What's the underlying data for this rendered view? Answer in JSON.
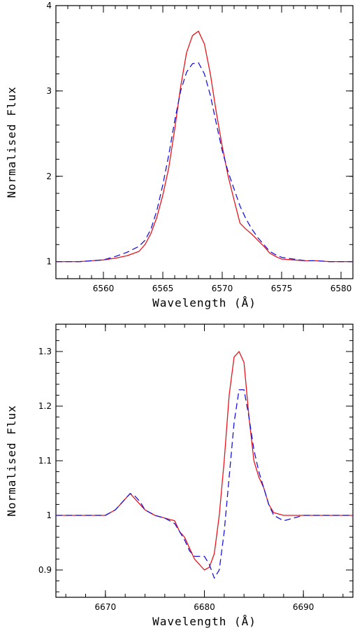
{
  "chart_data": [
    {
      "type": "line",
      "xlabel": "Wavelength (Å)",
      "ylabel": "Normalised Flux",
      "xlim": [
        6556,
        6581
      ],
      "ylim": [
        0.8,
        4.0
      ],
      "xticks": [
        6560,
        6565,
        6570,
        6575,
        6580
      ],
      "yticks": [
        1,
        2,
        3,
        4
      ],
      "grid": false,
      "series": [
        {
          "color": "#e8141c",
          "style": "solid",
          "x": [
            6556,
            6557,
            6558,
            6559,
            6560,
            6561,
            6562,
            6563,
            6563.5,
            6564,
            6564.5,
            6565,
            6565.5,
            6566,
            6566.5,
            6567,
            6567.5,
            6568,
            6568.5,
            6569,
            6569.5,
            6570,
            6570.5,
            6571,
            6571.5,
            6572,
            6572.5,
            6573,
            6573.5,
            6574,
            6574.5,
            6575,
            6576,
            6577,
            6578,
            6579,
            6580,
            6581
          ],
          "y": [
            1.0,
            1.0,
            1.0,
            1.01,
            1.02,
            1.04,
            1.07,
            1.12,
            1.2,
            1.33,
            1.52,
            1.78,
            2.1,
            2.55,
            3.05,
            3.45,
            3.65,
            3.7,
            3.55,
            3.2,
            2.75,
            2.35,
            2.0,
            1.72,
            1.45,
            1.38,
            1.32,
            1.25,
            1.18,
            1.1,
            1.06,
            1.03,
            1.02,
            1.01,
            1.01,
            1.0,
            1.0,
            1.0
          ]
        },
        {
          "color": "#1a14d8",
          "style": "dashed",
          "x": [
            6556,
            6557,
            6558,
            6559,
            6560,
            6561,
            6562,
            6563,
            6563.5,
            6564,
            6564.5,
            6565,
            6565.5,
            6566,
            6566.5,
            6567,
            6567.5,
            6568,
            6568.5,
            6569,
            6569.5,
            6570,
            6570.5,
            6571,
            6571.5,
            6572,
            6572.5,
            6573,
            6573.5,
            6574,
            6574.5,
            6575,
            6576,
            6577,
            6578,
            6579,
            6580,
            6581
          ],
          "y": [
            1.0,
            1.0,
            1.0,
            1.01,
            1.02,
            1.06,
            1.11,
            1.18,
            1.25,
            1.38,
            1.6,
            1.9,
            2.25,
            2.65,
            3.0,
            3.22,
            3.32,
            3.33,
            3.2,
            2.95,
            2.62,
            2.3,
            2.05,
            1.85,
            1.65,
            1.5,
            1.38,
            1.28,
            1.2,
            1.12,
            1.08,
            1.05,
            1.03,
            1.01,
            1.01,
            1.0,
            1.0,
            1.0
          ]
        }
      ]
    },
    {
      "type": "line",
      "xlabel": "Wavelength (Å)",
      "ylabel": "Normalised Flux",
      "xlim": [
        6665,
        6695
      ],
      "ylim": [
        0.85,
        1.35
      ],
      "xticks": [
        6670,
        6680,
        6690
      ],
      "yticks": [
        0.9,
        1,
        1.1,
        1.2,
        1.3
      ],
      "ytick_labels": [
        "0.9",
        "1",
        "1.1",
        "1.2",
        "1.3"
      ],
      "grid": false,
      "series": [
        {
          "color": "#e8141c",
          "style": "solid",
          "x": [
            6665,
            6666,
            6667,
            6668,
            6669,
            6670,
            6670.5,
            6671,
            6671.5,
            6672,
            6672.5,
            6673,
            6673.5,
            6674,
            6675,
            6676,
            6677,
            6677.5,
            6678,
            6678.5,
            6679,
            6679.5,
            6680,
            6680.5,
            6681,
            6681.5,
            6682,
            6682.5,
            6683,
            6683.5,
            6684,
            6684.5,
            6685,
            6685.5,
            6686,
            6686.5,
            6687,
            6688,
            6689,
            6690,
            6691,
            6692,
            6693,
            6694,
            6695
          ],
          "y": [
            1.0,
            1.0,
            1.0,
            1.0,
            1.0,
            1.0,
            1.005,
            1.01,
            1.02,
            1.03,
            1.04,
            1.03,
            1.02,
            1.01,
            1.0,
            0.995,
            0.99,
            0.97,
            0.96,
            0.94,
            0.92,
            0.91,
            0.9,
            0.905,
            0.93,
            1.0,
            1.1,
            1.22,
            1.29,
            1.3,
            1.28,
            1.18,
            1.1,
            1.07,
            1.05,
            1.02,
            1.005,
            1.0,
            1.0,
            1.0,
            1.0,
            1.0,
            1.0,
            1.0,
            1.0
          ]
        },
        {
          "color": "#1a14d8",
          "style": "dashed",
          "x": [
            6665,
            6666,
            6667,
            6668,
            6669,
            6670,
            6670.5,
            6671,
            6671.5,
            6672,
            6672.5,
            6673,
            6673.5,
            6674,
            6675,
            6676,
            6677,
            6677.5,
            6678,
            6678.5,
            6679,
            6679.5,
            6680,
            6680.5,
            6681,
            6681.5,
            6682,
            6682.5,
            6683,
            6683.5,
            6684,
            6684.5,
            6685,
            6685.5,
            6686,
            6686.5,
            6687,
            6688,
            6689,
            6690,
            6691,
            6692,
            6693,
            6694,
            6695
          ],
          "y": [
            1.0,
            1.0,
            1.0,
            1.0,
            1.0,
            1.0,
            1.005,
            1.01,
            1.02,
            1.03,
            1.04,
            1.035,
            1.025,
            1.01,
            1.0,
            0.995,
            0.985,
            0.97,
            0.955,
            0.935,
            0.925,
            0.925,
            0.925,
            0.91,
            0.885,
            0.9,
            0.97,
            1.07,
            1.17,
            1.23,
            1.23,
            1.18,
            1.12,
            1.08,
            1.05,
            1.02,
            1.0,
            0.99,
            0.995,
            1.0,
            1.0,
            1.0,
            1.0,
            1.0,
            1.0
          ]
        }
      ]
    }
  ]
}
